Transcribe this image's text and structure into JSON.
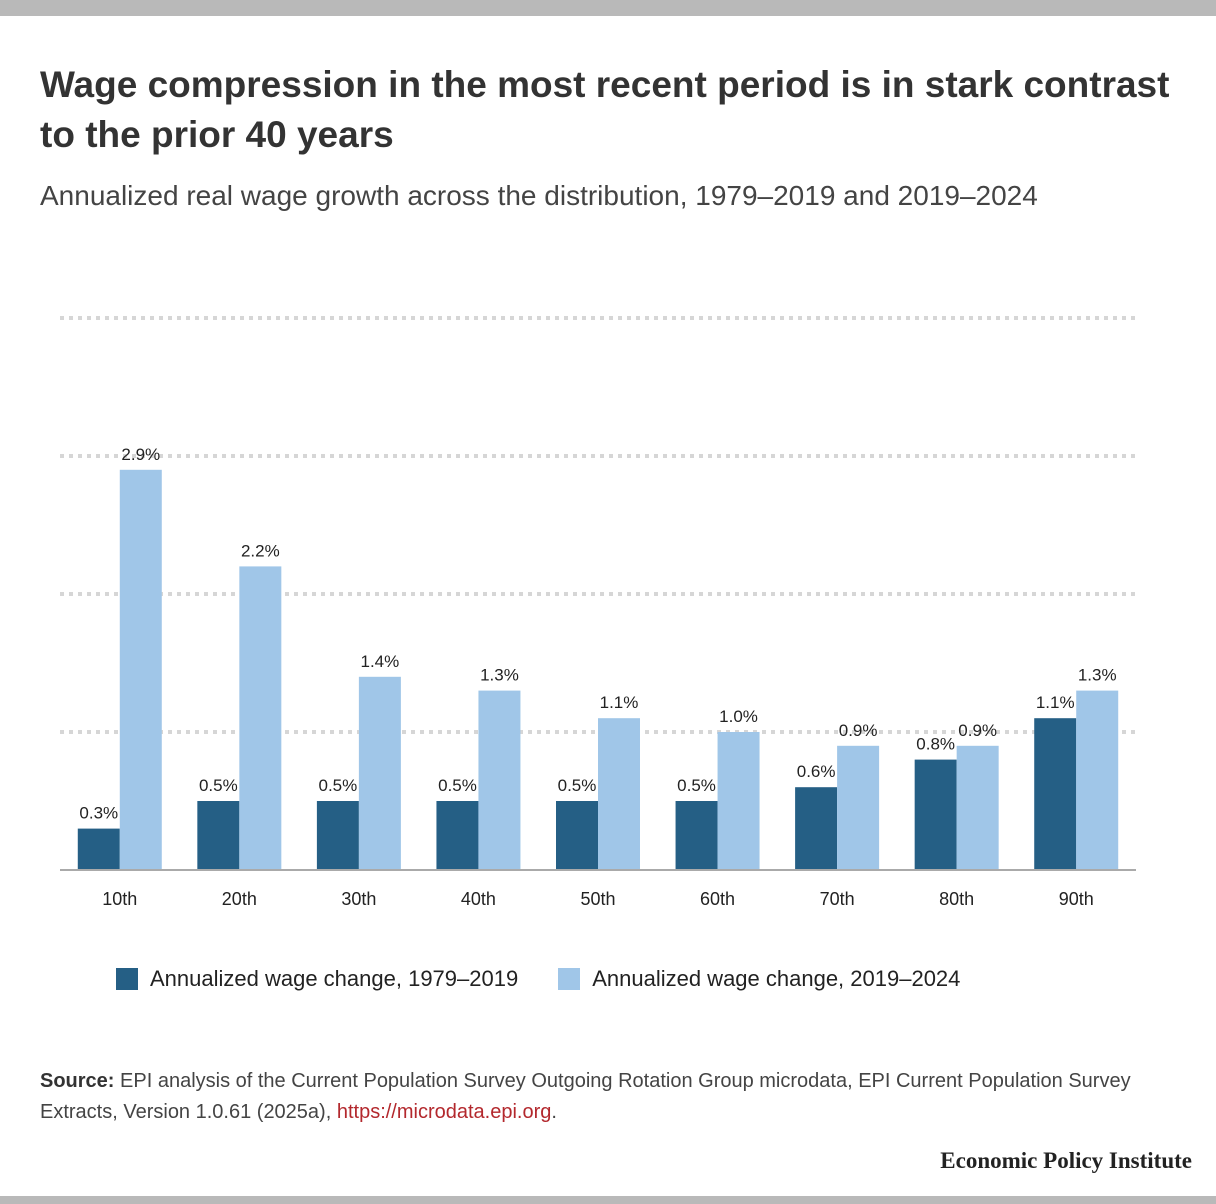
{
  "title": "Wage compression in the most recent period is in stark contrast to the prior 40 years",
  "subtitle": "Annualized real wage growth across the distribution, 1979–2019 and 2019–2024",
  "chart_data": {
    "type": "bar",
    "categories": [
      "10th",
      "20th",
      "30th",
      "40th",
      "50th",
      "60th",
      "70th",
      "80th",
      "90th"
    ],
    "series": [
      {
        "name": "Annualized wage change, 1979–2019",
        "values": [
          0.3,
          0.5,
          0.5,
          0.5,
          0.5,
          0.5,
          0.6,
          0.8,
          1.1
        ],
        "labels": [
          "0.3%",
          "0.5%",
          "0.5%",
          "0.5%",
          "0.5%",
          "0.5%",
          "0.6%",
          "0.8%",
          "1.1%"
        ],
        "color": "#255f85"
      },
      {
        "name": "Annualized wage change, 2019–2024",
        "values": [
          2.9,
          2.2,
          1.4,
          1.3,
          1.1,
          1.0,
          0.9,
          0.9,
          1.3
        ],
        "labels": [
          "2.9%",
          "2.2%",
          "1.4%",
          "1.3%",
          "1.1%",
          "1.0%",
          "0.9%",
          "0.9%",
          "1.3%"
        ],
        "color": "#a0c6e8"
      }
    ],
    "ylim": [
      0,
      4
    ],
    "grid": true,
    "legend": "bottom"
  },
  "source": {
    "label": "Source:",
    "text": " EPI analysis of the Current Population Survey Outgoing Rotation Group microdata, EPI Current Population Survey Extracts, Version 1.0.61 (2025a), ",
    "link": "https://microdata.epi.org",
    "end": "."
  },
  "brand": "Economic Policy Institute"
}
